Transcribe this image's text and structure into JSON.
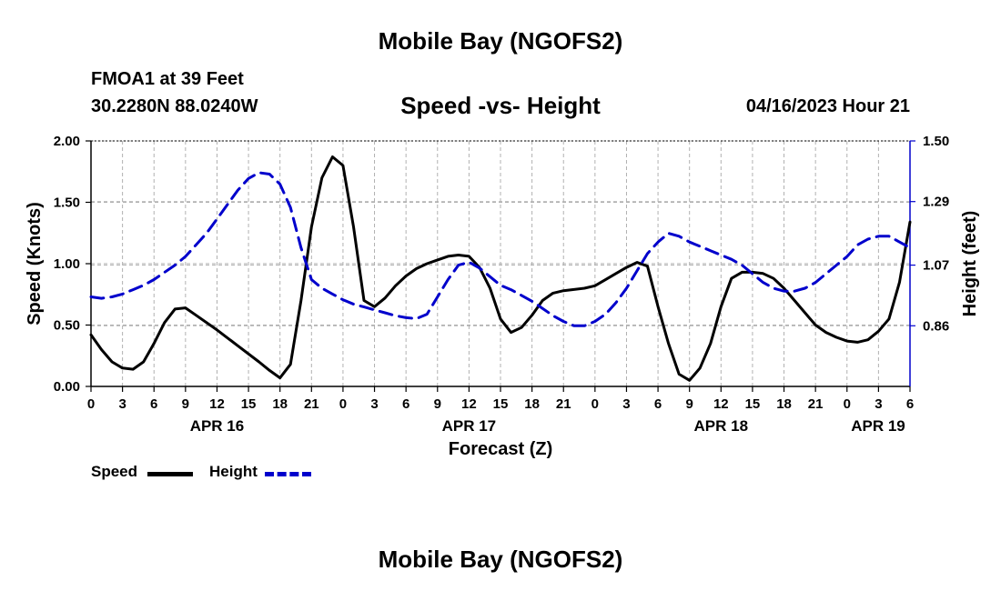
{
  "header": {
    "title": "Mobile Bay (NGOFS2)",
    "station": "FMOA1 at 39 Feet",
    "coordinates": "30.2280N  88.0240W",
    "subtitle": "Speed -vs- Height",
    "datetime": "04/16/2023 Hour 21"
  },
  "footer": {
    "title": "Mobile Bay (NGOFS2)"
  },
  "legend": {
    "speed_label": "Speed",
    "height_label": "Height"
  },
  "colors": {
    "speed": "#000000",
    "height": "#0000cc",
    "grid": "#b0b0b0"
  },
  "chart_data": {
    "type": "line",
    "title": "Speed -vs- Height",
    "xlabel": "Forecast (Z)",
    "ylabel": "Speed (Knots)",
    "y2label": "Height (feet)",
    "xlim": [
      0,
      78
    ],
    "ylim": [
      0,
      2
    ],
    "y2lim": [
      0.65,
      1.5
    ],
    "y_ticks": [
      "0.00",
      "0.50",
      "1.00",
      "1.50",
      "2.00"
    ],
    "y_tick_values": [
      0,
      0.5,
      1.0,
      1.5,
      2.0
    ],
    "y2_ticks": [
      "0.86",
      "1.07",
      "1.29",
      "1.50"
    ],
    "y2_tick_values": [
      0.86,
      1.07,
      1.29,
      1.5
    ],
    "x_tick_labels": [
      "0",
      "3",
      "6",
      "9",
      "12",
      "15",
      "18",
      "21",
      "0",
      "3",
      "6",
      "9",
      "12",
      "15",
      "18",
      "21",
      "0",
      "3",
      "6",
      "9",
      "12",
      "15",
      "18",
      "21",
      "0",
      "3",
      "6"
    ],
    "x_tick_hours": [
      0,
      3,
      6,
      9,
      12,
      15,
      18,
      21,
      24,
      27,
      30,
      33,
      36,
      39,
      42,
      45,
      48,
      51,
      54,
      57,
      60,
      63,
      66,
      69,
      72,
      75,
      78
    ],
    "date_labels": [
      "APR 16",
      "APR 17",
      "APR 18",
      "APR 19"
    ],
    "date_hours": [
      12,
      36,
      60,
      84
    ],
    "grid": true,
    "series": [
      {
        "name": "Speed",
        "axis": "left",
        "style": "solid",
        "x": [
          0,
          1,
          2,
          3,
          4,
          5,
          6,
          7,
          8,
          9,
          10,
          12,
          14,
          16,
          17,
          18,
          19,
          20,
          21,
          22,
          23,
          24,
          25,
          26,
          27,
          28,
          29,
          30,
          31,
          32,
          33,
          34,
          35,
          36,
          37,
          38,
          39,
          40,
          41,
          42,
          43,
          44,
          45,
          46,
          47,
          48,
          49,
          50,
          51,
          52,
          53,
          54,
          55,
          56,
          57,
          58,
          59,
          60,
          61,
          62,
          63,
          64,
          65,
          66,
          67,
          68,
          69,
          70,
          71,
          72,
          73,
          74,
          75,
          76,
          77,
          78
        ],
        "y": [
          0.42,
          0.3,
          0.2,
          0.15,
          0.14,
          0.2,
          0.35,
          0.52,
          0.63,
          0.64,
          0.58,
          0.46,
          0.33,
          0.2,
          0.13,
          0.07,
          0.18,
          0.7,
          1.3,
          1.7,
          1.87,
          1.8,
          1.3,
          0.7,
          0.65,
          0.72,
          0.82,
          0.9,
          0.96,
          1.0,
          1.03,
          1.06,
          1.07,
          1.06,
          0.97,
          0.8,
          0.55,
          0.44,
          0.48,
          0.58,
          0.7,
          0.76,
          0.78,
          0.79,
          0.8,
          0.82,
          0.87,
          0.92,
          0.97,
          1.01,
          0.98,
          0.65,
          0.35,
          0.1,
          0.05,
          0.15,
          0.35,
          0.65,
          0.88,
          0.93,
          0.93,
          0.92,
          0.88,
          0.8,
          0.7,
          0.6,
          0.5,
          0.44,
          0.4,
          0.37,
          0.36,
          0.38,
          0.45,
          0.55,
          0.85,
          1.34
        ]
      },
      {
        "name": "Height",
        "axis": "right",
        "style": "dashed",
        "x": [
          0,
          1,
          2,
          3,
          4,
          5,
          6,
          7,
          8,
          9,
          10,
          11,
          12,
          13,
          14,
          15,
          16,
          17,
          18,
          19,
          20,
          21,
          22,
          23,
          24,
          25,
          26,
          27,
          28,
          29,
          30,
          31,
          32,
          33,
          34,
          35,
          36,
          37,
          38,
          39,
          40,
          41,
          42,
          43,
          44,
          45,
          46,
          47,
          48,
          49,
          50,
          51,
          52,
          53,
          54,
          55,
          56,
          57,
          58,
          59,
          60,
          61,
          62,
          63,
          64,
          65,
          66,
          67,
          68,
          69,
          70,
          71,
          72,
          73,
          74,
          75,
          76,
          77,
          78
        ],
        "y": [
          0.96,
          0.955,
          0.96,
          0.97,
          0.985,
          1.0,
          1.02,
          1.045,
          1.07,
          1.1,
          1.14,
          1.18,
          1.23,
          1.28,
          1.33,
          1.37,
          1.39,
          1.385,
          1.35,
          1.27,
          1.13,
          1.02,
          0.99,
          0.97,
          0.95,
          0.935,
          0.925,
          0.915,
          0.905,
          0.895,
          0.888,
          0.885,
          0.9,
          0.96,
          1.02,
          1.07,
          1.08,
          1.06,
          1.03,
          1.0,
          0.985,
          0.965,
          0.945,
          0.92,
          0.895,
          0.875,
          0.86,
          0.86,
          0.875,
          0.9,
          0.94,
          0.99,
          1.05,
          1.11,
          1.15,
          1.18,
          1.17,
          1.15,
          1.135,
          1.12,
          1.105,
          1.09,
          1.07,
          1.04,
          1.01,
          0.99,
          0.98,
          0.98,
          0.99,
          1.01,
          1.04,
          1.07,
          1.1,
          1.14,
          1.16,
          1.17,
          1.17,
          1.15,
          1.13
        ]
      }
    ]
  }
}
